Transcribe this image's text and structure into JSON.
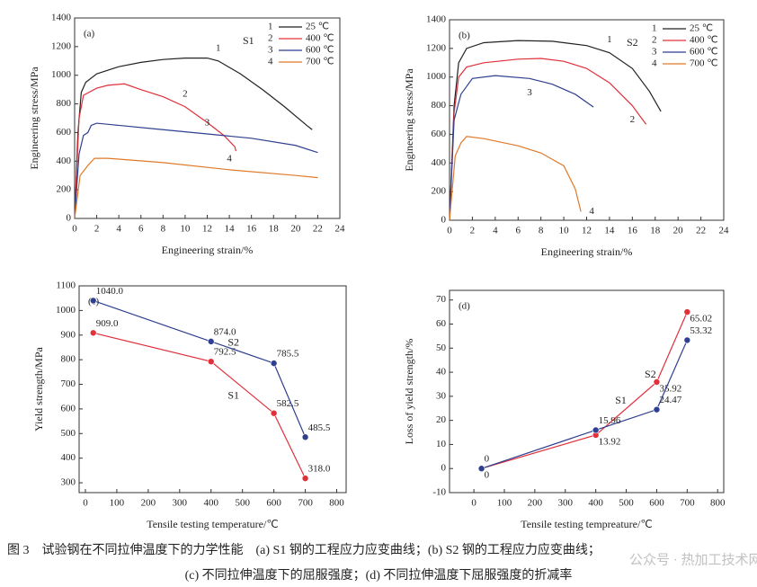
{
  "chart_data": [
    {
      "type": "line",
      "panel_label": "(a)",
      "x_label": "Engineering strain/%",
      "y_label": "Engineering stress/MPa",
      "xlim": [
        0,
        24
      ],
      "xticks": [
        0,
        2,
        4,
        6,
        8,
        10,
        12,
        14,
        16,
        18,
        20,
        22,
        24
      ],
      "ylim": [
        0,
        1400
      ],
      "yticks": [
        0,
        200,
        400,
        600,
        800,
        1000,
        1200,
        1400
      ],
      "legend": "upper right",
      "legend_title": "S1",
      "series": [
        {
          "name": "25 ℃",
          "label": "1",
          "color": "#222222",
          "x": [
            0,
            0.3,
            0.6,
            1,
            2,
            4,
            6,
            8,
            10,
            12,
            13,
            15,
            17,
            19,
            21,
            21.5
          ],
          "values": [
            0,
            600,
            880,
            950,
            1010,
            1060,
            1090,
            1110,
            1120,
            1120,
            1100,
            1010,
            900,
            780,
            650,
            620
          ]
        },
        {
          "name": "400 ℃",
          "label": "2",
          "color": "#e0303a",
          "x": [
            0,
            0.4,
            0.8,
            2,
            3,
            4.5,
            6,
            8,
            10,
            12,
            13.5,
            14.5,
            14.6
          ],
          "values": [
            0,
            700,
            860,
            910,
            930,
            940,
            900,
            850,
            780,
            670,
            580,
            500,
            470
          ]
        },
        {
          "name": "600 ℃",
          "label": "3",
          "color": "#2e3f8f",
          "x": [
            0,
            0.4,
            0.8,
            1.2,
            1.5,
            2,
            4,
            8,
            12,
            16,
            20,
            22
          ],
          "values": [
            0,
            450,
            580,
            600,
            650,
            665,
            650,
            620,
            590,
            560,
            510,
            460
          ]
        },
        {
          "name": "700 ℃",
          "label": "4",
          "color": "#e07a2a",
          "x": [
            0,
            0.5,
            0.9,
            1.2,
            1.8,
            3,
            8,
            14,
            20,
            22
          ],
          "values": [
            0,
            300,
            340,
            370,
            420,
            420,
            390,
            340,
            300,
            285
          ]
        }
      ]
    },
    {
      "type": "line",
      "panel_label": "(b)",
      "x_label": "Engineering strain/%",
      "y_label": "Engineering stress/MPa",
      "xlim": [
        0,
        24
      ],
      "xticks": [
        0,
        2,
        4,
        6,
        8,
        10,
        12,
        14,
        16,
        18,
        20,
        22,
        24
      ],
      "ylim": [
        0,
        1400
      ],
      "yticks": [
        0,
        200,
        400,
        600,
        800,
        1000,
        1200,
        1400
      ],
      "legend": "upper right",
      "legend_title": "S2",
      "series": [
        {
          "name": "25 ℃",
          "label": "1",
          "color": "#222222",
          "x": [
            0,
            0.4,
            0.8,
            1.5,
            3,
            6,
            9,
            12,
            14,
            16,
            17.5,
            18.5
          ],
          "values": [
            0,
            800,
            1100,
            1200,
            1240,
            1255,
            1250,
            1220,
            1170,
            1060,
            900,
            760
          ]
        },
        {
          "name": "400 ℃",
          "label": "2",
          "color": "#e0303a",
          "x": [
            0,
            0.4,
            0.8,
            1.5,
            3,
            6,
            8,
            10,
            12,
            14,
            16,
            17.2
          ],
          "values": [
            0,
            750,
            1000,
            1070,
            1100,
            1125,
            1130,
            1110,
            1060,
            960,
            800,
            670
          ]
        },
        {
          "name": "600 ℃",
          "label": "3",
          "color": "#2e3f8f",
          "x": [
            0,
            0.4,
            1,
            2,
            4,
            7,
            9,
            11,
            12.6
          ],
          "values": [
            0,
            700,
            880,
            990,
            1010,
            990,
            950,
            880,
            790
          ]
        },
        {
          "name": "700 ℃",
          "label": "4",
          "color": "#e07a2a",
          "x": [
            0,
            0.5,
            1,
            1.5,
            3,
            6,
            8,
            10,
            11,
            11.5
          ],
          "values": [
            0,
            450,
            540,
            585,
            570,
            520,
            470,
            380,
            220,
            60
          ]
        }
      ]
    },
    {
      "type": "dotline",
      "panel_label": "(c)",
      "x_label": "Tensile testing temperature/℃",
      "y_label": "Yield strength/MPa",
      "xlim": [
        -20,
        830
      ],
      "xticks": [
        0,
        100,
        200,
        300,
        400,
        500,
        600,
        700,
        800
      ],
      "ylim": [
        260,
        1100
      ],
      "yticks": [
        300,
        400,
        500,
        600,
        700,
        800,
        900,
        1000,
        1100
      ],
      "series": [
        {
          "name": "S1",
          "color": "#e0303a",
          "x": [
            25,
            400,
            600,
            700
          ],
          "values": [
            909,
            792.5,
            582.5,
            318
          ],
          "value_labels": [
            "909.0",
            "792.5",
            "582.5",
            "318.0"
          ]
        },
        {
          "name": "S2",
          "color": "#2e3f8f",
          "x": [
            25,
            400,
            600,
            700
          ],
          "values": [
            1040,
            874,
            785.5,
            485.5
          ],
          "value_labels": [
            "1040.0",
            "874.0",
            "785.5",
            "485.5"
          ]
        }
      ]
    },
    {
      "type": "dotline",
      "panel_label": "(d)",
      "x_label": "Tensile testing tempreature/℃",
      "y_label": "Loss of yield strength/%",
      "xlim": [
        -80,
        820
      ],
      "xticks": [
        0,
        100,
        200,
        300,
        400,
        500,
        600,
        700,
        800
      ],
      "ylim": [
        -10,
        74
      ],
      "yticks": [
        -10,
        0,
        10,
        20,
        30,
        40,
        50,
        60,
        70
      ],
      "series": [
        {
          "name": "S1",
          "color": "#e0303a",
          "x": [
            25,
            400,
            600,
            700
          ],
          "values": [
            0,
            13.92,
            35.92,
            65.02
          ]
        },
        {
          "name": "S2",
          "color": "#2e3f8f",
          "x": [
            25,
            400,
            600,
            700
          ],
          "values": [
            0,
            15.96,
            24.47,
            53.32
          ]
        }
      ]
    }
  ],
  "caption": [
    "图 3　试验钢在不同拉伸温度下的力学性能　(a) S1 钢的工程应力应变曲线；(b) S2 钢的工程应力应变曲线；",
    "(c) 不同拉伸温度下的屈服强度；(d) 不同拉伸温度下屈服强度的折减率"
  ],
  "watermark": "公众号 · 热加工技术网"
}
